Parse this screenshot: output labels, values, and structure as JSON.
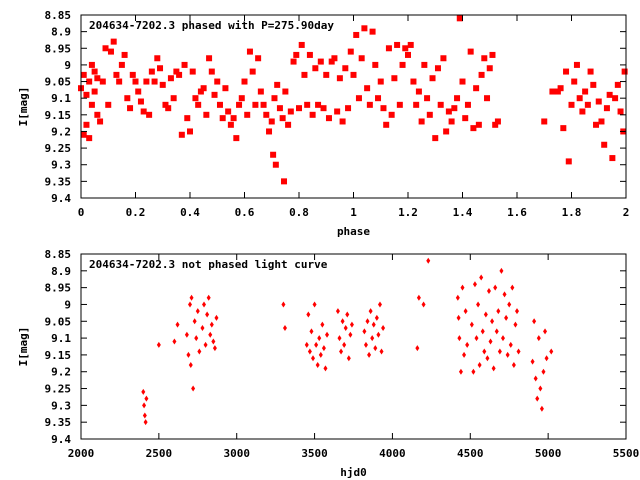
{
  "colors": {
    "points": "#ff0000",
    "axes": "#000000",
    "background": "#ffffff"
  },
  "chart_data": [
    {
      "type": "scatter",
      "title": "204634-7202.3 phased with P=275.90day",
      "xlabel": "phase",
      "ylabel": "I[mag]",
      "xlim": [
        0,
        2
      ],
      "ylim": [
        8.85,
        9.4
      ],
      "y_inverted": true,
      "xticks": [
        "0",
        "0.2",
        "0.4",
        "0.6",
        "0.8",
        "1",
        "1.2",
        "1.4",
        "1.6",
        "1.8",
        "2"
      ],
      "yticks": [
        "8.85",
        "8.9",
        "8.95",
        "9",
        "9.05",
        "9.1",
        "9.15",
        "9.2",
        "9.25",
        "9.3",
        "9.35",
        "9.4"
      ],
      "grid": false,
      "marker": "filled-square",
      "series": [
        {
          "x": [
            0.0,
            0.01,
            0.01,
            0.02,
            0.02,
            0.03,
            0.03,
            0.04,
            0.04,
            0.05,
            0.05,
            0.06,
            0.06,
            0.07,
            0.08,
            0.09,
            0.1,
            0.11,
            0.12,
            0.13,
            0.14,
            0.15,
            0.16,
            0.17,
            0.18,
            0.19,
            0.2,
            0.21,
            0.22,
            0.23,
            0.24,
            0.25,
            0.26,
            0.27,
            0.28,
            0.29,
            0.3,
            0.31,
            0.32,
            0.33,
            0.34,
            0.35,
            0.36,
            0.37,
            0.38,
            0.39,
            0.4,
            0.41,
            0.42,
            0.43,
            0.44,
            0.45,
            0.46,
            0.47,
            0.48,
            0.49,
            0.5,
            0.51,
            0.52,
            0.53,
            0.54,
            0.55,
            0.56,
            0.57,
            0.58,
            0.59,
            0.6,
            0.61,
            0.62,
            0.63,
            0.64,
            0.65,
            0.66,
            0.67,
            0.68,
            0.69,
            0.7,
            0.705,
            0.71,
            0.715,
            0.72,
            0.73,
            0.74,
            0.745,
            0.75,
            0.76,
            0.77,
            0.78,
            0.79,
            0.8,
            0.81,
            0.82,
            0.83,
            0.84,
            0.85,
            0.86,
            0.87,
            0.88,
            0.89,
            0.9,
            0.91,
            0.92,
            0.93,
            0.94,
            0.95,
            0.96,
            0.97,
            0.98,
            0.99,
            1.0,
            1.01,
            1.02,
            1.03,
            1.04,
            1.05,
            1.06,
            1.07,
            1.08,
            1.09,
            1.1,
            1.11,
            1.12,
            1.13,
            1.14,
            1.15,
            1.16,
            1.17,
            1.18,
            1.19,
            1.2,
            1.21,
            1.22,
            1.23,
            1.24,
            1.25,
            1.26,
            1.27,
            1.28,
            1.29,
            1.3,
            1.31,
            1.32,
            1.33,
            1.34,
            1.35,
            1.36,
            1.37,
            1.38,
            1.39,
            1.4,
            1.41,
            1.42,
            1.43,
            1.44,
            1.45,
            1.46,
            1.47,
            1.48,
            1.49,
            1.5,
            1.51,
            1.52,
            1.53,
            1.7,
            1.73,
            1.75,
            1.76,
            1.77,
            1.78,
            1.79,
            1.8,
            1.81,
            1.82,
            1.83,
            1.84,
            1.85,
            1.86,
            1.87,
            1.88,
            1.89,
            1.9,
            1.91,
            1.92,
            1.93,
            1.94,
            1.95,
            1.96,
            1.97,
            1.98,
            1.99,
            1.995
          ],
          "y": [
            9.07,
            9.21,
            9.03,
            9.18,
            9.09,
            9.05,
            9.22,
            9.0,
            9.12,
            9.08,
            9.02,
            9.15,
            9.04,
            9.17,
            9.05,
            8.95,
            9.12,
            8.96,
            8.93,
            9.03,
            9.05,
            9.0,
            8.97,
            9.1,
            9.13,
            9.03,
            9.05,
            9.08,
            9.11,
            9.14,
            9.05,
            9.15,
            9.02,
            9.05,
            8.98,
            9.01,
            9.06,
            9.12,
            9.13,
            9.04,
            9.1,
            9.02,
            9.03,
            9.21,
            9.0,
            9.16,
            9.2,
            9.02,
            9.1,
            9.12,
            9.08,
            9.07,
            9.15,
            8.98,
            9.02,
            9.09,
            9.05,
            9.12,
            9.16,
            9.07,
            9.14,
            9.18,
            9.16,
            9.22,
            9.12,
            9.1,
            9.05,
            9.15,
            8.96,
            9.02,
            9.12,
            8.98,
            9.08,
            9.12,
            9.15,
            9.2,
            9.17,
            9.27,
            9.1,
            9.3,
            9.06,
            9.13,
            9.16,
            9.35,
            9.08,
            9.18,
            9.14,
            8.99,
            8.97,
            9.13,
            8.94,
            9.03,
            9.12,
            8.97,
            9.15,
            9.01,
            9.12,
            8.99,
            9.13,
            9.03,
            9.16,
            8.99,
            8.98,
            9.14,
            9.04,
            9.17,
            9.01,
            9.13,
            8.96,
            9.03,
            8.91,
            9.1,
            8.98,
            8.89,
            9.07,
            9.12,
            8.9,
            9.0,
            9.1,
            9.05,
            9.13,
            9.18,
            8.95,
            9.15,
            9.04,
            8.94,
            9.12,
            9.0,
            8.95,
            8.97,
            8.94,
            9.05,
            9.12,
            9.08,
            9.17,
            9.0,
            9.1,
            9.15,
            9.04,
            9.22,
            9.01,
            9.12,
            8.98,
            9.2,
            9.14,
            9.17,
            9.13,
            9.1,
            8.86,
            9.05,
            9.16,
            9.12,
            8.96,
            9.19,
            9.07,
            9.18,
            9.03,
            8.98,
            9.1,
            9.01,
            8.97,
            9.18,
            9.17,
            9.17,
            9.08,
            9.08,
            9.07,
            9.19,
            9.02,
            9.29,
            9.12,
            9.05,
            9.0,
            9.1,
            9.14,
            9.08,
            9.12,
            9.02,
            9.06,
            9.18,
            9.11,
            9.17,
            9.24,
            9.13,
            9.09,
            9.28,
            9.1,
            9.06,
            9.14,
            9.2,
            9.02
          ]
        }
      ]
    },
    {
      "type": "scatter",
      "title": "204634-7202.3 not phased light curve",
      "xlabel": "hjd0",
      "ylabel": "I[mag]",
      "xlim": [
        2000,
        5500
      ],
      "ylim": [
        8.85,
        9.4
      ],
      "y_inverted": true,
      "xticks": [
        "2000",
        "2500",
        "3000",
        "3500",
        "4000",
        "4500",
        "5000",
        "5500"
      ],
      "yticks": [
        "8.85",
        "8.9",
        "8.95",
        "9",
        "9.05",
        "9.1",
        "9.15",
        "9.2",
        "9.25",
        "9.3",
        "9.35",
        "9.4"
      ],
      "grid": false,
      "marker": "filled-diamond",
      "series": [
        {
          "x": [
            2400,
            2405,
            2410,
            2415,
            2420,
            2500,
            2600,
            2620,
            2680,
            2690,
            2700,
            2705,
            2710,
            2720,
            2730,
            2740,
            2750,
            2760,
            2780,
            2790,
            2800,
            2810,
            2820,
            2830,
            2840,
            2850,
            2860,
            2870,
            3300,
            3310,
            3450,
            3460,
            3470,
            3480,
            3490,
            3500,
            3510,
            3520,
            3530,
            3540,
            3550,
            3560,
            3570,
            3580,
            3650,
            3660,
            3670,
            3680,
            3690,
            3700,
            3710,
            3720,
            3730,
            3740,
            3820,
            3830,
            3840,
            3850,
            3860,
            3870,
            3880,
            3890,
            3900,
            3910,
            3920,
            3930,
            3940,
            4160,
            4170,
            4200,
            4230,
            4420,
            4425,
            4430,
            4440,
            4450,
            4460,
            4470,
            4480,
            4510,
            4520,
            4530,
            4540,
            4550,
            4560,
            4570,
            4580,
            4590,
            4600,
            4610,
            4620,
            4630,
            4640,
            4650,
            4660,
            4670,
            4680,
            4690,
            4700,
            4710,
            4720,
            4730,
            4740,
            4750,
            4760,
            4770,
            4780,
            4790,
            4800,
            4810,
            4900,
            4910,
            4920,
            4930,
            4940,
            4950,
            4960,
            4970,
            4980,
            4990,
            5020
          ],
          "y": [
            9.26,
            9.3,
            9.33,
            9.35,
            9.28,
            9.12,
            9.11,
            9.06,
            9.09,
            9.15,
            9.0,
            9.18,
            8.98,
            9.25,
            9.05,
            9.1,
            9.02,
            9.14,
            9.07,
            9.0,
            9.12,
            9.03,
            8.98,
            9.09,
            9.06,
            9.11,
            9.13,
            9.04,
            9.0,
            9.07,
            9.12,
            9.03,
            9.14,
            9.08,
            9.16,
            9.0,
            9.12,
            9.18,
            9.1,
            9.15,
            9.06,
            9.13,
            9.19,
            9.09,
            9.02,
            9.1,
            9.14,
            9.05,
            9.12,
            9.07,
            9.03,
            9.16,
            9.09,
            9.06,
            9.08,
            9.12,
            9.05,
            9.15,
            9.02,
            9.1,
            9.06,
            9.13,
            9.04,
            9.09,
            9.0,
            9.14,
            9.07,
            9.13,
            8.98,
            9.0,
            8.87,
            8.98,
            9.04,
            9.1,
            9.2,
            8.95,
            9.15,
            9.02,
            9.12,
            9.06,
            9.2,
            8.94,
            9.1,
            9.0,
            9.18,
            8.92,
            9.08,
            9.14,
            9.03,
            9.16,
            8.96,
            9.11,
            9.05,
            9.19,
            8.95,
            9.08,
            9.02,
            9.14,
            8.9,
            9.1,
            8.97,
            9.04,
            9.15,
            9.0,
            9.12,
            8.95,
            9.18,
            9.06,
            9.02,
            9.14,
            9.17,
            9.05,
            9.22,
            9.28,
            9.1,
            9.25,
            9.31,
            9.2,
            9.08,
            9.16,
            9.14
          ]
        }
      ]
    }
  ]
}
